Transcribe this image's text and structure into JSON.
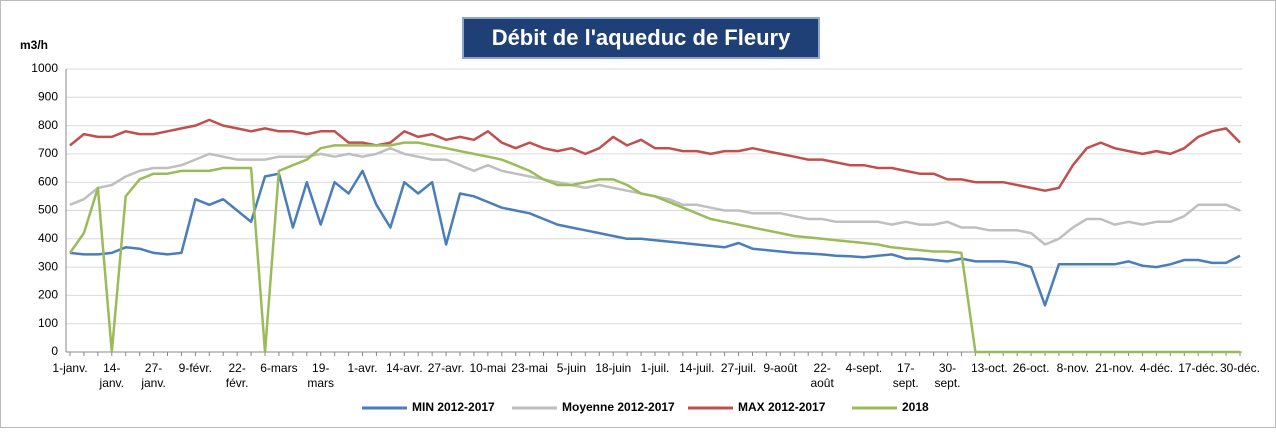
{
  "chart_data": {
    "type": "line",
    "title": "Débit de l'aqueduc de Fleury",
    "y_label": "m3/h",
    "categories": [
      "1-janv.",
      null,
      null,
      "14-janv.",
      null,
      null,
      "27-janv.",
      null,
      null,
      "9-févr.",
      null,
      null,
      "22-févr.",
      null,
      null,
      "6-mars",
      null,
      null,
      "19-mars",
      null,
      null,
      "1-avr.",
      null,
      null,
      "14-avr.",
      null,
      null,
      "27-avr.",
      null,
      null,
      "10-mai",
      null,
      null,
      "23-mai",
      null,
      null,
      "5-juin",
      null,
      null,
      "18-juin",
      null,
      null,
      "1-juil.",
      null,
      null,
      "14-juil.",
      null,
      null,
      "27-juil.",
      null,
      null,
      "9-août",
      null,
      null,
      "22-août",
      null,
      null,
      "4-sept.",
      null,
      null,
      "17-sept.",
      null,
      null,
      "30-sept.",
      null,
      null,
      "13-oct.",
      null,
      null,
      "26-oct.",
      null,
      null,
      "8-nov.",
      null,
      null,
      "21-nov.",
      null,
      null,
      "4-déc.",
      null,
      null,
      "17-déc.",
      null,
      null,
      "30-déc."
    ],
    "series": [
      {
        "name": "MIN 2012-2017",
        "color": "#4a7ebb",
        "values": [
          350,
          345,
          345,
          350,
          370,
          365,
          350,
          345,
          350,
          540,
          520,
          540,
          500,
          460,
          620,
          630,
          440,
          600,
          450,
          600,
          560,
          640,
          520,
          440,
          600,
          560,
          600,
          380,
          560,
          550,
          530,
          510,
          500,
          490,
          470,
          450,
          440,
          430,
          420,
          410,
          400,
          400,
          395,
          390,
          385,
          380,
          375,
          370,
          385,
          365,
          360,
          355,
          350,
          348,
          345,
          340,
          338,
          335,
          340,
          345,
          330,
          330,
          325,
          320,
          330,
          320,
          320,
          320,
          315,
          300,
          165,
          310,
          310,
          310,
          310,
          310,
          320,
          305,
          300,
          310,
          325,
          325,
          315,
          315,
          340
        ]
      },
      {
        "name": "Moyenne 2012-2017",
        "color": "#bfbfbf",
        "values": [
          520,
          540,
          580,
          590,
          620,
          640,
          650,
          650,
          660,
          680,
          700,
          690,
          680,
          680,
          680,
          690,
          690,
          690,
          700,
          690,
          700,
          690,
          700,
          720,
          700,
          690,
          680,
          680,
          660,
          640,
          660,
          640,
          630,
          620,
          610,
          600,
          590,
          580,
          590,
          580,
          570,
          560,
          550,
          540,
          520,
          520,
          510,
          500,
          500,
          490,
          490,
          490,
          480,
          470,
          470,
          460,
          460,
          460,
          460,
          450,
          460,
          450,
          450,
          460,
          440,
          440,
          430,
          430,
          430,
          420,
          380,
          400,
          440,
          470,
          470,
          450,
          460,
          450,
          460,
          460,
          480,
          520,
          520,
          520,
          500
        ]
      },
      {
        "name": "MAX 2012-2017",
        "color": "#c0504d",
        "values": [
          730,
          770,
          760,
          760,
          780,
          770,
          770,
          780,
          790,
          800,
          820,
          800,
          790,
          780,
          790,
          780,
          780,
          770,
          780,
          780,
          740,
          740,
          730,
          740,
          780,
          760,
          770,
          750,
          760,
          750,
          780,
          740,
          720,
          740,
          720,
          710,
          720,
          700,
          720,
          760,
          730,
          750,
          720,
          720,
          710,
          710,
          700,
          710,
          710,
          720,
          710,
          700,
          690,
          680,
          680,
          670,
          660,
          660,
          650,
          650,
          640,
          630,
          630,
          610,
          610,
          600,
          600,
          600,
          590,
          580,
          570,
          580,
          660,
          720,
          740,
          720,
          710,
          700,
          710,
          700,
          720,
          760,
          780,
          790,
          740
        ]
      },
      {
        "name": "2018",
        "color": "#9bbb59",
        "values": [
          350,
          420,
          580,
          0,
          550,
          610,
          630,
          630,
          640,
          640,
          640,
          650,
          650,
          650,
          0,
          640,
          660,
          680,
          720,
          730,
          730,
          730,
          730,
          730,
          740,
          740,
          730,
          720,
          710,
          700,
          690,
          680,
          660,
          640,
          610,
          590,
          590,
          600,
          610,
          610,
          590,
          560,
          550,
          530,
          510,
          490,
          470,
          460,
          450,
          440,
          430,
          420,
          410,
          405,
          400,
          395,
          390,
          385,
          380,
          370,
          365,
          360,
          355,
          355,
          350,
          0,
          0,
          0,
          0,
          0,
          0,
          0,
          0,
          0,
          0,
          0,
          0,
          0,
          0,
          0,
          0,
          0,
          0,
          0,
          0
        ]
      }
    ],
    "ylim": [
      0,
      1000
    ],
    "yticks": [
      0,
      100,
      200,
      300,
      400,
      500,
      600,
      700,
      800,
      900,
      1000
    ],
    "grid": true
  }
}
